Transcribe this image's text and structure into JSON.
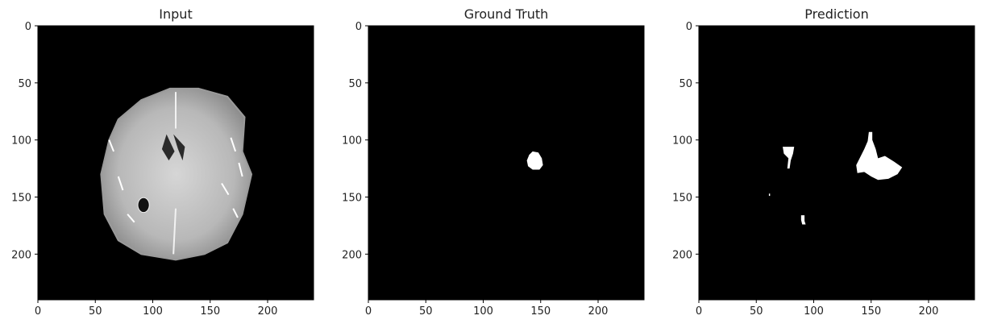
{
  "chart_data": [
    {
      "type": "heatmap",
      "title": "Input",
      "xlabel": "",
      "ylabel": "",
      "xlim": [
        0,
        240
      ],
      "ylim": [
        240,
        0
      ],
      "xticks": [
        0,
        50,
        100,
        150,
        200
      ],
      "yticks": [
        0,
        50,
        100,
        150,
        200
      ],
      "colormap": "gray",
      "content": "axial brain MRI slice (grayscale)",
      "brain_outline": [
        [
          140,
          55
        ],
        [
          165,
          62
        ],
        [
          180,
          80
        ],
        [
          178,
          110
        ],
        [
          186,
          130
        ],
        [
          178,
          165
        ],
        [
          165,
          190
        ],
        [
          145,
          200
        ],
        [
          120,
          205
        ],
        [
          90,
          200
        ],
        [
          70,
          188
        ],
        [
          58,
          165
        ],
        [
          55,
          130
        ],
        [
          62,
          100
        ],
        [
          70,
          82
        ],
        [
          90,
          65
        ],
        [
          115,
          55
        ]
      ],
      "ventricles": [
        [
          [
            112,
            95
          ],
          [
            108,
            108
          ],
          [
            114,
            118
          ],
          [
            119,
            110
          ]
        ],
        [
          [
            118,
            95
          ],
          [
            122,
            108
          ],
          [
            126,
            118
          ],
          [
            128,
            106
          ]
        ]
      ],
      "dark_spot": [
        92,
        157,
        5
      ]
    },
    {
      "type": "heatmap",
      "title": "Ground Truth",
      "xlabel": "",
      "ylabel": "",
      "xlim": [
        0,
        240
      ],
      "ylim": [
        240,
        0
      ],
      "xticks": [
        0,
        50,
        100,
        150,
        200
      ],
      "yticks": [
        0,
        50,
        100,
        150,
        200
      ],
      "colormap": "gray",
      "regions": [
        {
          "points": [
            [
              143,
              110
            ],
            [
              148,
              111
            ],
            [
              151,
              116
            ],
            [
              152,
              122
            ],
            [
              149,
              126
            ],
            [
              143,
              126
            ],
            [
              139,
              123
            ],
            [
              138,
              118
            ],
            [
              140,
              113
            ]
          ]
        }
      ]
    },
    {
      "type": "heatmap",
      "title": "Prediction",
      "xlabel": "",
      "ylabel": "",
      "xlim": [
        0,
        240
      ],
      "ylim": [
        240,
        0
      ],
      "xticks": [
        0,
        50,
        100,
        150,
        200
      ],
      "yticks": [
        0,
        50,
        100,
        150,
        200
      ],
      "colormap": "gray",
      "regions": [
        {
          "points": [
            [
              148,
              93
            ],
            [
              151,
              93
            ],
            [
              151,
              100
            ],
            [
              154,
              108
            ],
            [
              156,
              116
            ],
            [
              162,
              114
            ],
            [
              170,
              119
            ],
            [
              177,
              124
            ],
            [
              173,
              130
            ],
            [
              165,
              134
            ],
            [
              156,
              135
            ],
            [
              150,
              132
            ],
            [
              144,
              128
            ],
            [
              138,
              129
            ],
            [
              137,
              122
            ],
            [
              140,
              116
            ],
            [
              144,
              108
            ],
            [
              147,
              101
            ]
          ]
        },
        {
          "points": [
            [
              73,
              106
            ],
            [
              83,
              106
            ],
            [
              82,
              112
            ],
            [
              80,
              118
            ],
            [
              79,
              125
            ],
            [
              77,
              125
            ],
            [
              78,
              116
            ],
            [
              74,
              112
            ]
          ]
        },
        {
          "points": [
            [
              61,
              147
            ],
            [
              62,
              147
            ],
            [
              62,
              149
            ],
            [
              61,
              149
            ]
          ]
        },
        {
          "points": [
            [
              89,
              166
            ],
            [
              92,
              166
            ],
            [
              92,
              171
            ],
            [
              93,
              174
            ],
            [
              90,
              174
            ],
            [
              89,
              170
            ]
          ]
        }
      ]
    }
  ]
}
